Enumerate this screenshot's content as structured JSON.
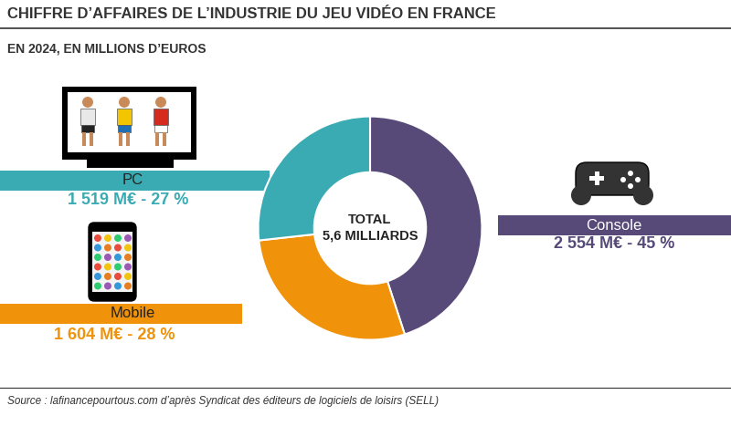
{
  "chart_data": {
    "type": "pie",
    "title": "CHIFFRE D’AFFAIRES DE L’INDUSTRIE DU JEU VIDÉO EN FRANCE",
    "subtitle": "EN 2024, EN MILLIONS D’EUROS",
    "center_label": [
      "TOTAL",
      "5,6 MILLIARDS"
    ],
    "categories": [
      "Console",
      "Mobile",
      "PC"
    ],
    "values": [
      2554,
      1604,
      1519
    ],
    "value_labels": [
      "2 554 M€ - 45 %",
      "1 604 M€ - 28 %",
      "1 519 M€ - 27 %"
    ],
    "colors": [
      "#574a78",
      "#f0920a",
      "#3aabb3"
    ],
    "data_labels": true,
    "source": "Source : lafinancepourtous.com d’après Syndicat des éditeurs de logiciels de loisirs (SELL)"
  }
}
